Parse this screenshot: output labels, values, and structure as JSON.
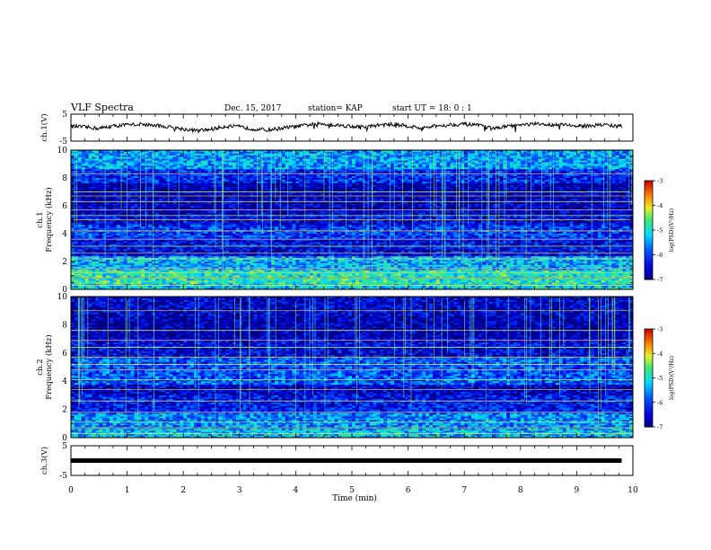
{
  "header": {
    "title": "VLF Spectra",
    "date": "Dec. 15, 2017",
    "station": "station= KAP",
    "start_ut": "start  UT =   18: 0  : 1"
  },
  "chart_data": [
    {
      "type": "line",
      "panel": "ch1_waveform",
      "ylabel": "ch.1(V)",
      "ylim": [
        -5,
        5
      ],
      "yticks": [
        "5",
        "-5"
      ],
      "xlim": [
        0,
        10
      ],
      "x": [
        0,
        0.25,
        0.5,
        0.75,
        1.0,
        1.25,
        1.5,
        1.75,
        2.0,
        2.25,
        2.5,
        2.75,
        3.0,
        3.25,
        3.5,
        3.75,
        4.0,
        4.25,
        4.5,
        4.75,
        5.0,
        5.25,
        5.5,
        5.75,
        6.0,
        6.25,
        6.5,
        6.75,
        7.0,
        7.25,
        7.5,
        7.75,
        8.0,
        8.25,
        8.5,
        8.75,
        9.0,
        9.25,
        9.5,
        9.8
      ],
      "y": [
        0.5,
        0.2,
        -0.3,
        0.6,
        1.0,
        1.3,
        0.8,
        0.2,
        -0.5,
        -1.2,
        -0.6,
        0.5,
        0.3,
        -0.5,
        -0.9,
        -0.2,
        0.4,
        1.1,
        1.4,
        0.9,
        0.5,
        0.2,
        1.0,
        1.2,
        0.6,
        -0.3,
        0.6,
        1.1,
        1.3,
        0.8,
        -0.4,
        0.4,
        1.0,
        1.3,
        1.0,
        1.4,
        0.4,
        0.8,
        1.1,
        0.4
      ]
    },
    {
      "type": "heatmap",
      "panel": "ch1_spectrogram",
      "ylabel": "ch.1",
      "ylabel2": "Frequency (kHz)",
      "ylim": [
        0,
        10
      ],
      "yticks": [
        "0",
        "2",
        "4",
        "6",
        "8",
        "10"
      ],
      "xlim": [
        0,
        10
      ],
      "colorbar": {
        "label": "log(PSD)(V²/Hz)",
        "range": [
          -7,
          -3
        ],
        "ticks": [
          "-3",
          "-4",
          "-5",
          "-6",
          "-7"
        ]
      },
      "bands": [
        {
          "from_khz": 0,
          "to_khz": 0.4,
          "level": -5.2
        },
        {
          "from_khz": 0.4,
          "to_khz": 1.4,
          "level": -4.9
        },
        {
          "from_khz": 1.4,
          "to_khz": 2.4,
          "level": -5.4
        },
        {
          "from_khz": 2.4,
          "to_khz": 3.6,
          "level": -6.4
        },
        {
          "from_khz": 3.6,
          "to_khz": 4.6,
          "level": -6.1
        },
        {
          "from_khz": 4.6,
          "to_khz": 5.4,
          "level": -6.5
        },
        {
          "from_khz": 5.4,
          "to_khz": 6.6,
          "level": -6.7
        },
        {
          "from_khz": 6.6,
          "to_khz": 7.6,
          "level": -6.8
        },
        {
          "from_khz": 7.6,
          "to_khz": 8.6,
          "level": -6.2
        },
        {
          "from_khz": 8.6,
          "to_khz": 10,
          "level": -5.5
        }
      ],
      "lines_khz": [
        0.3,
        0.8,
        1.2,
        1.5,
        2.2,
        2.6,
        3.1,
        3.6,
        4.2,
        5.0,
        5.3,
        5.7,
        6.3,
        6.7,
        7.0,
        8.3
      ]
    },
    {
      "type": "heatmap",
      "panel": "ch2_spectrogram",
      "ylabel": "ch.2",
      "ylabel2": "Frequency (kHz)",
      "ylim": [
        0,
        10
      ],
      "yticks": [
        "0",
        "2",
        "4",
        "6",
        "8",
        "10"
      ],
      "xlim": [
        0,
        10
      ],
      "colorbar": {
        "label": "log(PSD)(V²/Hz)",
        "range": [
          -7,
          -3
        ],
        "ticks": [
          "-3",
          "-4",
          "-5",
          "-6",
          "-7"
        ]
      },
      "bands": [
        {
          "from_khz": 0,
          "to_khz": 0.6,
          "level": -5.3
        },
        {
          "from_khz": 0.6,
          "to_khz": 1.8,
          "level": -5.6
        },
        {
          "from_khz": 1.8,
          "to_khz": 3.0,
          "level": -6.3
        },
        {
          "from_khz": 3.0,
          "to_khz": 3.8,
          "level": -6.6
        },
        {
          "from_khz": 3.8,
          "to_khz": 5.8,
          "level": -5.9
        },
        {
          "from_khz": 5.8,
          "to_khz": 7.0,
          "level": -6.5
        },
        {
          "from_khz": 7.0,
          "to_khz": 8.6,
          "level": -6.8
        },
        {
          "from_khz": 8.6,
          "to_khz": 10,
          "level": -6.6
        }
      ],
      "lines_khz": [
        0.3,
        0.7,
        1.1,
        1.8,
        2.6,
        3.4,
        4.1,
        4.8,
        5.2,
        5.7,
        6.4,
        6.9,
        7.6,
        9.0
      ]
    },
    {
      "type": "line",
      "panel": "ch3_waveform",
      "ylabel": "ch.3(V)",
      "ylim": [
        -5,
        5
      ],
      "yticks": [
        "5",
        "-5"
      ],
      "xlim": [
        0,
        10
      ],
      "x": [
        0,
        9.8
      ],
      "y": [
        0,
        0
      ]
    }
  ],
  "xaxis": {
    "label": "Time  (min)",
    "ticks": [
      "0",
      "1",
      "2",
      "3",
      "4",
      "5",
      "6",
      "7",
      "8",
      "9",
      "10"
    ]
  }
}
